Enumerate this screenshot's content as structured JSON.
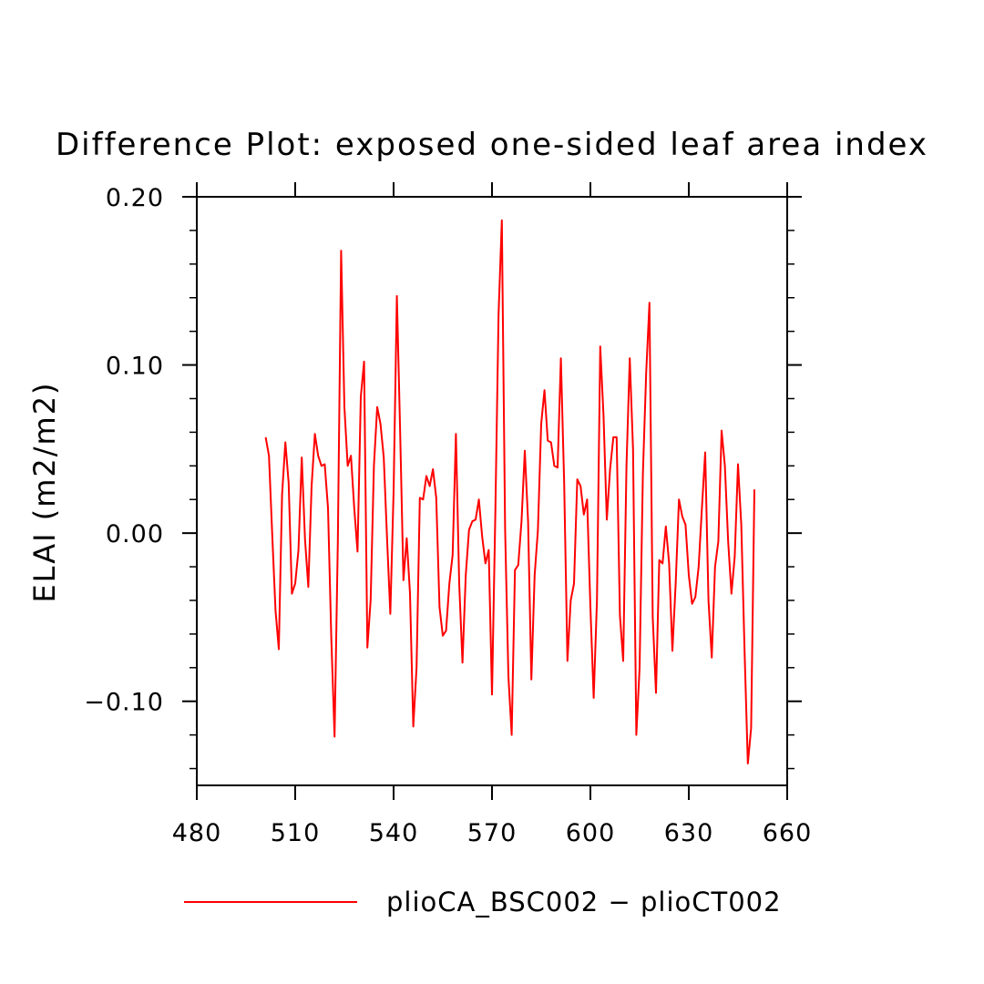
{
  "chart_data": {
    "type": "line",
    "title": "Difference Plot: exposed one-sided leaf area index",
    "xlabel": "",
    "ylabel": "ELAI  (m2/m2)",
    "xlim": [
      480,
      660
    ],
    "ylim": [
      -0.15,
      0.2
    ],
    "x_ticks": [
      480,
      510,
      540,
      570,
      600,
      630,
      660
    ],
    "x_tick_labels": [
      "480",
      "510",
      "540",
      "570",
      "600",
      "630",
      "660"
    ],
    "y_ticks": [
      -0.1,
      0.0,
      0.1,
      0.2
    ],
    "y_tick_labels": [
      "−0.10",
      "0.00",
      "0.10",
      "0.20"
    ],
    "grid": false,
    "legend_position": "bottom",
    "series": [
      {
        "name": "plioCA_BSC002 − plioCT002",
        "color": "#ff0000",
        "x": [
          501,
          502,
          503,
          504,
          505,
          506,
          507,
          508,
          509,
          510,
          511,
          512,
          513,
          514,
          515,
          516,
          517,
          518,
          519,
          520,
          521,
          522,
          523,
          524,
          525,
          526,
          527,
          528,
          529,
          530,
          531,
          532,
          533,
          534,
          535,
          536,
          537,
          538,
          539,
          540,
          541,
          542,
          543,
          544,
          545,
          546,
          547,
          548,
          549,
          550,
          551,
          552,
          553,
          554,
          555,
          556,
          557,
          558,
          559,
          560,
          561,
          562,
          563,
          564,
          565,
          566,
          567,
          568,
          569,
          570,
          571,
          572,
          573,
          574,
          575,
          576,
          577,
          578,
          579,
          580,
          581,
          582,
          583,
          584,
          585,
          586,
          587,
          588,
          589,
          590,
          591,
          592,
          593,
          594,
          595,
          596,
          597,
          598,
          599,
          600,
          601,
          602,
          603,
          604,
          605,
          606,
          607,
          608,
          609,
          610,
          611,
          612,
          613,
          614,
          615,
          616,
          617,
          618,
          619,
          620,
          621,
          622,
          623,
          624,
          625,
          626,
          627,
          628,
          629,
          630,
          631,
          632,
          633,
          634,
          635,
          636,
          637,
          638,
          639,
          640,
          641,
          642,
          643,
          644,
          645,
          646,
          647,
          648,
          649,
          650
        ],
        "values": [
          0.057,
          0.046,
          -0.001,
          -0.046,
          -0.069,
          0.023,
          0.054,
          0.03,
          -0.036,
          -0.03,
          -0.01,
          0.045,
          -0.004,
          -0.032,
          0.028,
          0.059,
          0.046,
          0.04,
          0.041,
          0.015,
          -0.062,
          -0.121,
          -0.005,
          0.168,
          0.075,
          0.04,
          0.046,
          0.015,
          -0.011,
          0.081,
          0.102,
          -0.068,
          -0.04,
          0.04,
          0.075,
          0.065,
          0.045,
          -0.003,
          -0.048,
          0.025,
          0.141,
          0.06,
          -0.028,
          -0.003,
          -0.036,
          -0.115,
          -0.08,
          0.021,
          0.02,
          0.034,
          0.028,
          0.038,
          0.021,
          -0.044,
          -0.061,
          -0.058,
          -0.03,
          -0.013,
          0.059,
          -0.03,
          -0.077,
          -0.025,
          0.002,
          0.007,
          0.008,
          0.02,
          -0.002,
          -0.018,
          -0.01,
          -0.096,
          0.01,
          0.13,
          0.186,
          0.002,
          -0.085,
          -0.12,
          -0.022,
          -0.019,
          0.007,
          0.049,
          0.007,
          -0.087,
          -0.025,
          0.002,
          0.065,
          0.085,
          0.055,
          0.054,
          0.04,
          0.039,
          0.104,
          0.03,
          -0.076,
          -0.04,
          -0.03,
          0.032,
          0.028,
          0.011,
          0.02,
          -0.044,
          -0.098,
          -0.04,
          0.111,
          0.07,
          0.008,
          0.038,
          0.057,
          0.057,
          -0.049,
          -0.076,
          0.04,
          0.104,
          0.05,
          -0.12,
          -0.08,
          0.035,
          0.095,
          0.137,
          -0.05,
          -0.095,
          -0.016,
          -0.018,
          0.004,
          -0.018,
          -0.07,
          -0.03,
          0.02,
          0.01,
          0.005,
          -0.025,
          -0.042,
          -0.038,
          -0.02,
          0.015,
          0.048,
          -0.04,
          -0.074,
          -0.02,
          -0.005,
          0.061,
          0.04,
          -0.005,
          -0.036,
          -0.014,
          0.041,
          0.005,
          -0.07,
          -0.137,
          -0.116,
          0.026
        ]
      }
    ]
  }
}
